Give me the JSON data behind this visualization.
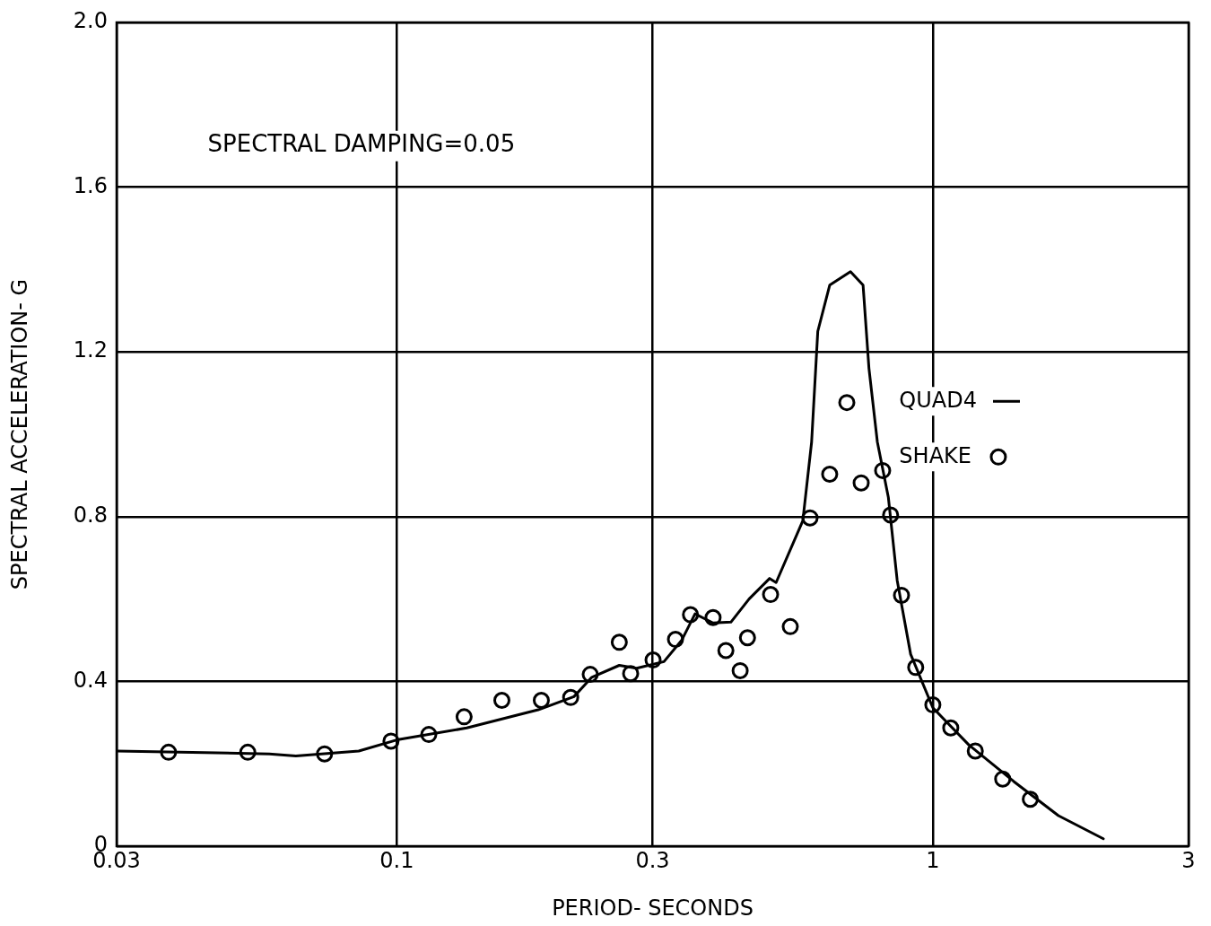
{
  "chart_data": {
    "type": "line",
    "xlabel": "PERIOD- SECONDS",
    "ylabel": "SPECTRAL ACCELERATION- G",
    "annotations": [
      "SPECTRAL DAMPING=0.05"
    ],
    "log": "x",
    "grid": true,
    "legend": "right",
    "xlim": [
      0.03,
      3
    ],
    "xticks": [
      0.03,
      0.1,
      0.3,
      1,
      3
    ],
    "ylim": [
      0,
      2
    ],
    "yticks": [
      0,
      0.4,
      0.8,
      1.2,
      1.6,
      {
        "value": 2,
        "label": "2.0"
      }
    ],
    "series": [
      {
        "name": "QUAD4",
        "type": "line",
        "marker": "none",
        "line_style": "solid",
        "color": "#000000",
        "x": [
          0.03,
          0.0578,
          0.0648,
          0.0849,
          0.1,
          0.135,
          0.1835,
          0.214,
          0.231,
          0.26,
          0.28,
          0.315,
          0.34,
          0.36,
          0.389,
          0.42,
          0.454,
          0.496,
          0.51,
          0.572,
          0.594,
          0.61,
          0.642,
          0.702,
          0.741,
          0.76,
          0.788,
          0.826,
          0.858,
          0.909,
          1.0,
          1.167,
          1.416,
          1.715,
          2.08
        ],
        "values": [
          0.231,
          0.224,
          0.219,
          0.231,
          0.258,
          0.287,
          0.331,
          0.363,
          0.41,
          0.439,
          0.432,
          0.448,
          0.5,
          0.564,
          0.542,
          0.544,
          0.6,
          0.65,
          0.64,
          0.79,
          0.981,
          1.25,
          1.362,
          1.395,
          1.362,
          1.16,
          0.981,
          0.847,
          0.645,
          0.466,
          0.336,
          0.246,
          0.157,
          0.074,
          0.018
        ]
      },
      {
        "name": "SHAKE",
        "type": "scatter",
        "marker": "circle",
        "color": "#000000",
        "x": [
          0.0375,
          0.0527,
          0.0733,
          0.0975,
          0.1147,
          0.1335,
          0.157,
          0.186,
          0.211,
          0.2295,
          0.26,
          0.273,
          0.3006,
          0.331,
          0.353,
          0.389,
          0.411,
          0.451,
          0.437,
          0.498,
          0.542,
          0.59,
          0.642,
          0.691,
          0.735,
          0.806,
          0.834,
          0.874,
          0.929,
          1.0,
          1.08,
          1.2,
          1.35,
          1.52
        ],
        "values": [
          0.228,
          0.228,
          0.224,
          0.255,
          0.271,
          0.314,
          0.354,
          0.354,
          0.361,
          0.417,
          0.495,
          0.419,
          0.452,
          0.502,
          0.562,
          0.555,
          0.475,
          0.506,
          0.426,
          0.611,
          0.533,
          0.797,
          0.903,
          1.077,
          0.882,
          0.912,
          0.804,
          0.609,
          0.434,
          0.343,
          0.287,
          0.231,
          0.163,
          0.114
        ]
      }
    ]
  }
}
